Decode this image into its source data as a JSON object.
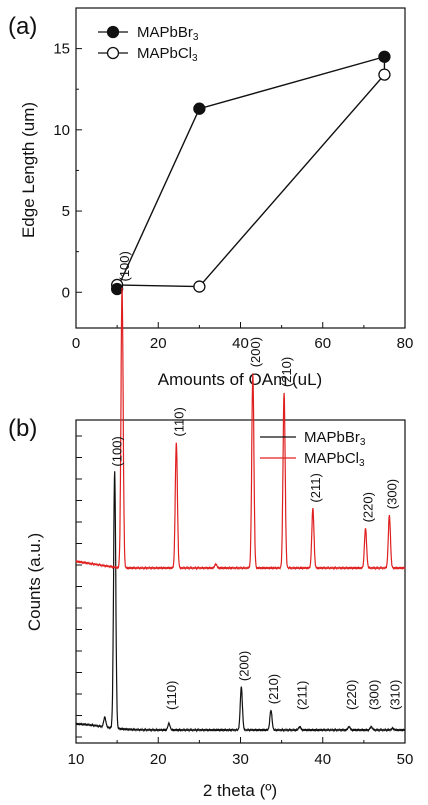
{
  "chart_data": [
    {
      "panel_label": "(a)",
      "type": "line",
      "xlabel": "Amounts of OAm (uL)",
      "ylabel": "Edge Length (um)",
      "xlim": [
        0,
        80
      ],
      "ylim": [
        -2.2,
        17.5
      ],
      "xticks": [
        "0",
        "20",
        "40",
        "60",
        "80"
      ],
      "yticks": [
        "0",
        "5",
        "10",
        "15"
      ],
      "legend_position": "top-left",
      "series": [
        {
          "name": "MAPbBr3",
          "label_main": "MAPbBr",
          "label_sub": "3",
          "marker": "filled-circle",
          "x": [
            10,
            30,
            75
          ],
          "y": [
            0.2,
            11.3,
            14.5
          ]
        },
        {
          "name": "MAPbCl3",
          "label_main": "MAPbCl",
          "label_sub": "3",
          "marker": "open-circle",
          "x": [
            10,
            30,
            75
          ],
          "y": [
            0.45,
            0.35,
            13.4
          ]
        }
      ],
      "closed_polygon": true
    },
    {
      "panel_label": "(b)",
      "type": "line",
      "xlabel": "2 theta (º)",
      "ylabel": "Counts (a.u.)",
      "xlim": [
        10,
        50
      ],
      "xticks": [
        "10",
        "20",
        "30",
        "40",
        "50"
      ],
      "legend_position": "top-right",
      "series": [
        {
          "name": "MAPbBr3",
          "label_main": "MAPbBr",
          "label_sub": "3",
          "color": "#111111",
          "peaks": [
            {
              "x": 14.7,
              "label": "(100)",
              "height": 0.78
            },
            {
              "x": 21.3,
              "label": "(110)",
              "height": 0.02
            },
            {
              "x": 30.1,
              "label": "(200)",
              "height": 0.13
            },
            {
              "x": 33.7,
              "label": "(210)",
              "height": 0.06
            },
            {
              "x": 37.2,
              "label": "(211)",
              "height": 0.01
            },
            {
              "x": 43.2,
              "label": "(220)",
              "height": 0.01
            },
            {
              "x": 45.9,
              "label": "(300)",
              "height": 0.01
            },
            {
              "x": 48.5,
              "label": "(310)",
              "height": 0.005
            }
          ]
        },
        {
          "name": "MAPbCl3",
          "label_main": "MAPbCl",
          "label_sub": "3",
          "color": "#e02020",
          "peaks": [
            {
              "x": 15.6,
              "label": "(100)",
              "height": 0.85
            },
            {
              "x": 22.2,
              "label": "(110)",
              "height": 0.38
            },
            {
              "x": 31.5,
              "label": "(200)",
              "height": 0.59
            },
            {
              "x": 35.3,
              "label": "(210)",
              "height": 0.53
            },
            {
              "x": 38.8,
              "label": "(211)",
              "height": 0.18
            },
            {
              "x": 45.2,
              "label": "(220)",
              "height": 0.12
            },
            {
              "x": 48.1,
              "label": "(300)",
              "height": 0.16
            }
          ]
        }
      ]
    }
  ]
}
